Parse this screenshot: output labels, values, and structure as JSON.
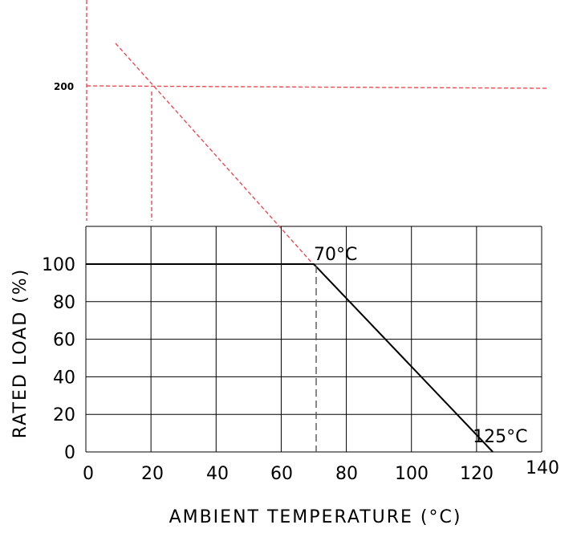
{
  "chart_data": {
    "type": "line",
    "title": "",
    "xlabel": "AMBIENT TEMPERATURE (°C)",
    "ylabel": "RATED LOAD (%)",
    "xlim": [
      0,
      140
    ],
    "ylim": [
      0,
      120
    ],
    "x_ticks": [
      "0",
      "20",
      "40",
      "60",
      "80",
      "100",
      "120",
      "140"
    ],
    "y_ticks": [
      "0",
      "20",
      "40",
      "60",
      "80",
      "100"
    ],
    "grid": true,
    "series": [
      {
        "x": [
          0,
          70,
          125
        ],
        "y": [
          100,
          100,
          0
        ]
      }
    ],
    "annotations": [
      {
        "text": "70°C",
        "x": 70,
        "y": 100
      },
      {
        "text": "125°C",
        "x": 125,
        "y": 0
      }
    ],
    "reference_label": "200",
    "colors": {
      "curve": "#000000",
      "grid": "#000000",
      "reference": "#e0505a",
      "knee_drop": "#555555"
    }
  }
}
